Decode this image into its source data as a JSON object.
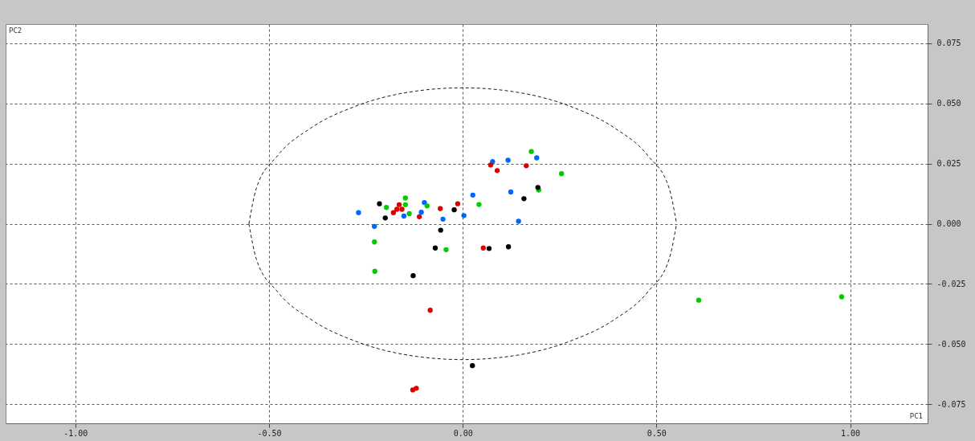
{
  "chart_data": {
    "type": "scatter",
    "xlabel": "PC1",
    "ylabel": "PC2",
    "marker": "circle",
    "grid": true,
    "legend": false,
    "xlim": [
      -1.18,
      1.2
    ],
    "ylim": [
      -0.083,
      0.083
    ],
    "xticks": [
      {
        "value": -1,
        "label": "-1.00"
      },
      {
        "value": -0.5,
        "label": "-0.50"
      },
      {
        "value": 0,
        "label": "0.00"
      },
      {
        "value": 0.5,
        "label": "0.50"
      },
      {
        "value": 1,
        "label": "1.00"
      }
    ],
    "yticks": [
      {
        "value": -0.075,
        "label": "-0.075"
      },
      {
        "value": -0.05,
        "label": "-0.050"
      },
      {
        "value": -0.025,
        "label": "-0.025"
      },
      {
        "value": 0,
        "label": "0.000"
      },
      {
        "value": 0.025,
        "label": "0.025"
      },
      {
        "value": 0.05,
        "label": "0.050"
      },
      {
        "value": 0.075,
        "label": "0.075"
      }
    ],
    "series": [
      {
        "color": "#0066ff",
        "x": [
          -0.269,
          -0.228,
          -0.152,
          -0.107,
          -0.099,
          -0.051,
          0.003,
          0.026,
          0.077,
          0.117,
          0.191,
          0.124,
          0.144
        ],
        "values": [
          0.0046,
          -0.0011,
          0.0032,
          0.0048,
          0.0088,
          0.0019,
          0.0034,
          0.0119,
          0.0258,
          0.0264,
          0.0274,
          0.0132,
          0.001
        ]
      },
      {
        "color": "#00cc00",
        "x": [
          0.177,
          0.255,
          0.196,
          0.042,
          -0.043,
          -0.092,
          -0.138,
          -0.148,
          -0.148,
          -0.197,
          -0.228,
          -0.227,
          0.609,
          0.978
        ],
        "values": [
          0.03,
          0.0208,
          0.014,
          0.008,
          -0.0108,
          0.0074,
          0.0042,
          0.0107,
          0.0079,
          0.0068,
          -0.0076,
          -0.0198,
          -0.0318,
          -0.0304
        ]
      },
      {
        "color": "#dd0000",
        "x": [
          -0.164,
          -0.17,
          -0.157,
          -0.179,
          -0.112,
          -0.058,
          -0.013,
          0.072,
          0.089,
          0.164,
          0.053,
          -0.084,
          -0.129,
          -0.12
        ],
        "values": [
          0.0079,
          0.006,
          0.006,
          0.0046,
          0.0029,
          0.0063,
          0.0083,
          0.0244,
          0.0221,
          0.0241,
          -0.0101,
          -0.036,
          -0.0691,
          -0.0684
        ]
      },
      {
        "color": "#000000",
        "x": [
          -0.215,
          -0.2,
          -0.128,
          -0.071,
          -0.057,
          -0.022,
          0.068,
          0.118,
          0.158,
          0.194,
          0.025
        ],
        "values": [
          0.0083,
          0.0024,
          -0.0216,
          -0.0101,
          -0.0027,
          0.0058,
          -0.0103,
          -0.0096,
          0.0104,
          0.0151,
          -0.059
        ]
      },
      {
        "type": "line",
        "marker": "none",
        "line_style": "dashed",
        "color": "#000000",
        "x": [
          -0.552,
          -0.533,
          -0.478,
          -0.39,
          -0.276,
          -0.143,
          0,
          0.143,
          0.276,
          0.39,
          0.478,
          0.533,
          0.552
        ],
        "values": [
          0,
          0.0146,
          0.0283,
          0.04,
          0.0489,
          0.0546,
          0.0565,
          0.0546,
          0.0489,
          0.04,
          0.0283,
          0.0146,
          0
        ]
      },
      {
        "type": "line",
        "marker": "none",
        "line_style": "dashed",
        "color": "#000000",
        "x": [
          -0.552,
          -0.533,
          -0.478,
          -0.39,
          -0.276,
          -0.143,
          0,
          0.143,
          0.276,
          0.39,
          0.478,
          0.533,
          0.552
        ],
        "values": [
          0,
          -0.0146,
          -0.0283,
          -0.04,
          -0.0489,
          -0.0546,
          -0.0565,
          -0.0546,
          -0.0489,
          -0.04,
          -0.0283,
          -0.0146,
          0
        ]
      }
    ]
  }
}
